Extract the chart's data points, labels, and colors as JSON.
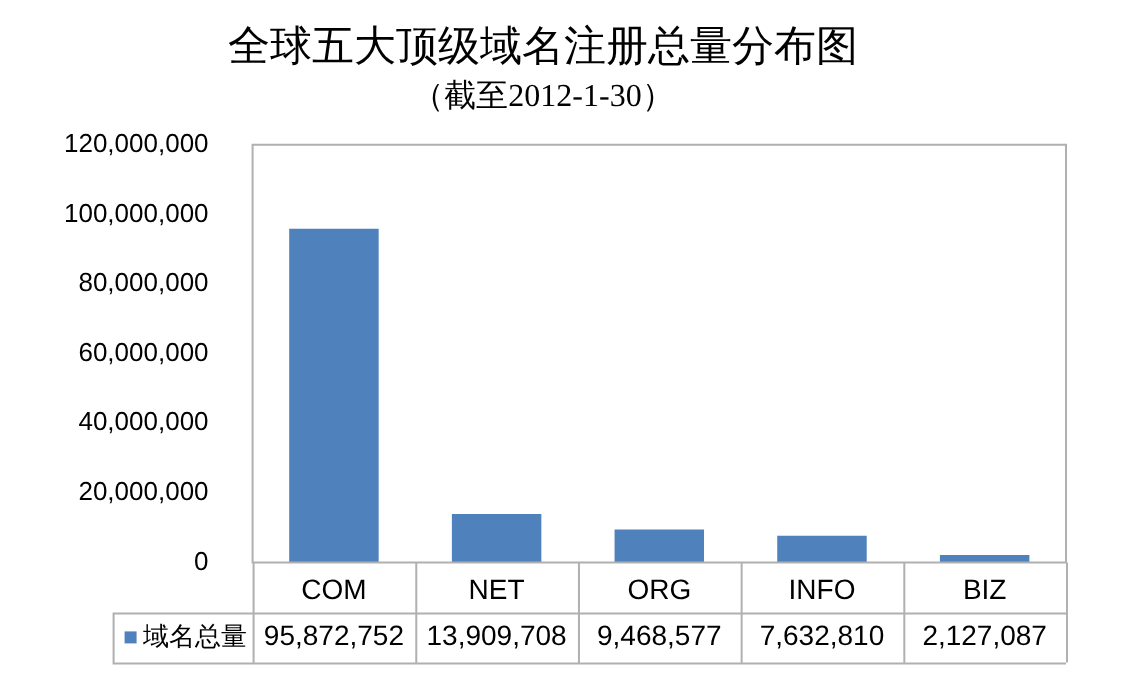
{
  "chart_data": {
    "type": "bar",
    "title": "全球五大顶级域名注册总量分布图",
    "subtitle": "（截至2012-1-30）",
    "categories": [
      "COM",
      "NET",
      "ORG",
      "INFO",
      "BIZ"
    ],
    "series": [
      {
        "name": "域名总量",
        "color": "#4f81bd",
        "values": [
          95872752,
          13909708,
          9468577,
          7632810,
          2127087
        ],
        "value_labels": [
          "95,872,752",
          "13,909,708",
          "9,468,577",
          "7,632,810",
          "2,127,087"
        ]
      }
    ],
    "ylim": [
      0,
      120000000
    ],
    "yticks": [
      {
        "value": 0,
        "label": "0"
      },
      {
        "value": 20000000,
        "label": "20,000,000"
      },
      {
        "value": 40000000,
        "label": "40,000,000"
      },
      {
        "value": 60000000,
        "label": "60,000,000"
      },
      {
        "value": 80000000,
        "label": "80,000,000"
      },
      {
        "value": 100000000,
        "label": "100,000,000"
      },
      {
        "value": 120000000,
        "label": "120,000,000"
      }
    ],
    "grid": false,
    "legend": "bottom"
  }
}
